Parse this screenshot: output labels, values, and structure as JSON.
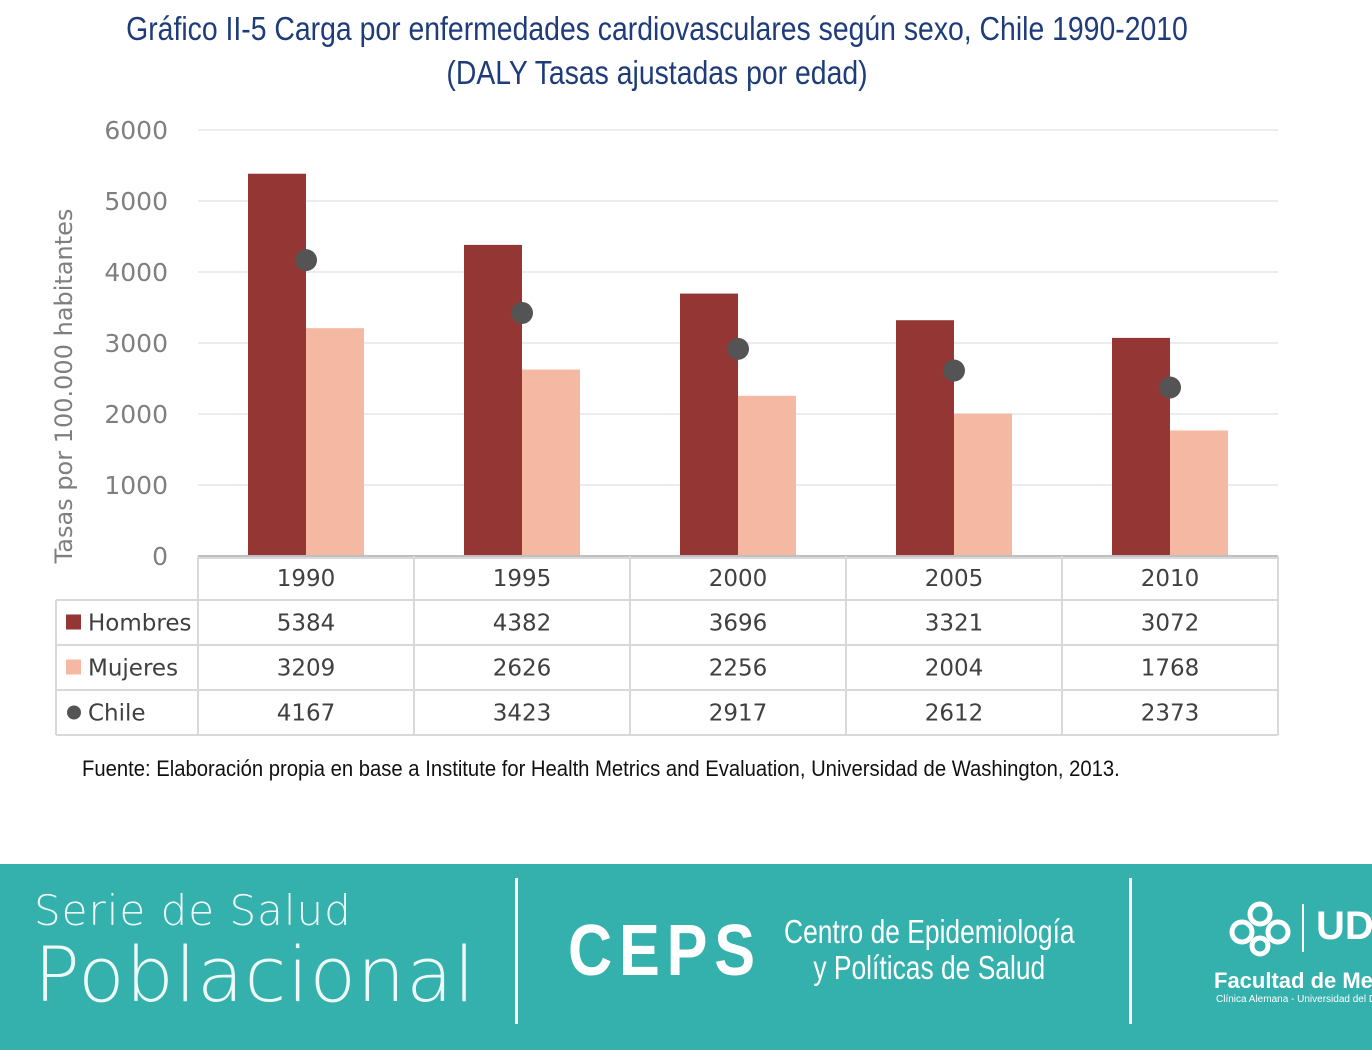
{
  "title_line1": "Gráfico II-5 Carga por enfermedades cardiovasculares según sexo, Chile 1990-2010",
  "title_line2": "(DALY Tasas ajustadas por edad)",
  "source": "Fuente: Elaboración propia en base a Institute for Health Metrics and Evaluation, Universidad de Washington, 2013.",
  "chart_data": {
    "type": "bar",
    "ylabel": "Tasas por 100.000 habitantes",
    "ylim": [
      0,
      6000
    ],
    "yticks": [
      0,
      1000,
      2000,
      3000,
      4000,
      5000,
      6000
    ],
    "categories": [
      "1990",
      "1995",
      "2000",
      "2005",
      "2010"
    ],
    "grid": true,
    "legend": "data-table",
    "series": [
      {
        "name": "Hombres",
        "kind": "bar",
        "color": "#943634",
        "values": [
          5384,
          4382,
          3696,
          3321,
          3072
        ]
      },
      {
        "name": "Mujeres",
        "kind": "bar",
        "color": "#f4b8a3",
        "values": [
          3209,
          2626,
          2256,
          2004,
          1768
        ]
      },
      {
        "name": "Chile",
        "kind": "marker",
        "color": "#545454",
        "values": [
          4167,
          3423,
          2917,
          2612,
          2373
        ]
      }
    ]
  },
  "footer": {
    "serie_line1": "Serie de Salud",
    "serie_line2": "Poblacional",
    "ceps": "CEPS",
    "ceps_sub1": "Centro de Epidemiología",
    "ceps_sub2": "y Políticas de Salud",
    "facultad": "Facultad de Medicina",
    "facultad_sub": "Clínica Alemana - Universidad del Desarrollo",
    "ud_logo": "UDD",
    "background_color": "#34b0ad"
  }
}
